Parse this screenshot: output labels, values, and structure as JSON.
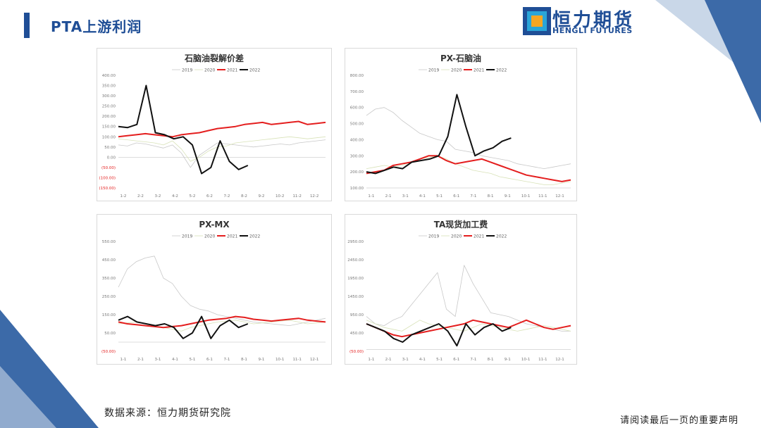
{
  "header": {
    "title": "PTA上游利润"
  },
  "logo": {
    "cn": "恒力期货",
    "en": "HENGLI FUTURES"
  },
  "footer": {
    "source": "数据来源：恒力期货研究院",
    "disclaimer": "请阅读最后一页的重要声明"
  },
  "colors": {
    "brand": "#1f4e96",
    "y2019": "#c8c8c8",
    "y2020": "#d8e2b8",
    "y2021": "#e41e1e",
    "y2022": "#111111"
  },
  "chart_data": [
    {
      "type": "line",
      "title": "石脑油裂解价差",
      "legend": [
        "2019",
        "2020",
        "2021",
        "2022"
      ],
      "legend_position": "top",
      "x_ticks": [
        "1-2",
        "2-2",
        "3-2",
        "4-2",
        "5-2",
        "6-2",
        "7-2",
        "8-2",
        "9-2",
        "10-2",
        "11-2",
        "12-2"
      ],
      "y_ticks": [
        "400.00",
        "350.00",
        "300.00",
        "250.00",
        "200.00",
        "150.00",
        "100.00",
        "50.00",
        "0.00",
        "(50.00)",
        "(100.00)",
        "(150.00)"
      ],
      "ylim": [
        -150,
        400
      ],
      "series": [
        {
          "name": "2019",
          "values": [
            60,
            55,
            70,
            65,
            55,
            45,
            60,
            20,
            -50,
            10,
            40,
            70,
            65,
            60,
            55,
            50,
            55,
            60,
            65,
            60,
            70,
            75,
            80,
            85
          ]
        },
        {
          "name": "2020",
          "values": [
            90,
            85,
            80,
            75,
            70,
            60,
            80,
            40,
            -20,
            0,
            30,
            50,
            55,
            70,
            75,
            80,
            85,
            90,
            95,
            100,
            95,
            90,
            95,
            100
          ]
        },
        {
          "name": "2021",
          "values": [
            100,
            105,
            110,
            115,
            110,
            105,
            100,
            110,
            115,
            120,
            130,
            140,
            145,
            150,
            160,
            165,
            170,
            160,
            165,
            170,
            175,
            160,
            165,
            170
          ]
        },
        {
          "name": "2022",
          "values": [
            150,
            145,
            160,
            350,
            120,
            110,
            90,
            100,
            60,
            -80,
            -50,
            80,
            -20,
            -60,
            -40
          ]
        }
      ]
    },
    {
      "type": "line",
      "title": "PX-石脑油",
      "legend": [
        "2019",
        "2020",
        "2021",
        "2022"
      ],
      "legend_position": "top",
      "x_ticks": [
        "1-1",
        "2-1",
        "3-1",
        "4-1",
        "5-1",
        "6-1",
        "7-1",
        "8-1",
        "9-1",
        "10-1",
        "11-1",
        "12-1"
      ],
      "y_ticks": [
        "800.00",
        "700.00",
        "600.00",
        "500.00",
        "400.00",
        "300.00",
        "200.00",
        "100.00"
      ],
      "ylim": [
        100,
        800
      ],
      "series": [
        {
          "name": "2019",
          "values": [
            550,
            590,
            600,
            570,
            520,
            480,
            440,
            420,
            400,
            390,
            340,
            330,
            320,
            300,
            290,
            280,
            270,
            250,
            240,
            230,
            220,
            230,
            240,
            250
          ]
        },
        {
          "name": "2020",
          "values": [
            220,
            230,
            240,
            230,
            240,
            260,
            280,
            290,
            300,
            280,
            250,
            230,
            210,
            200,
            190,
            170,
            160,
            150,
            140,
            130,
            120,
            120,
            130,
            140
          ]
        },
        {
          "name": "2021",
          "values": [
            190,
            200,
            210,
            240,
            250,
            260,
            280,
            300,
            300,
            270,
            250,
            260,
            270,
            280,
            260,
            240,
            220,
            200,
            180,
            170,
            160,
            150,
            140,
            150
          ]
        },
        {
          "name": "2022",
          "values": [
            200,
            190,
            210,
            230,
            220,
            260,
            270,
            280,
            300,
            420,
            680,
            480,
            300,
            330,
            350,
            390,
            410
          ]
        }
      ]
    },
    {
      "type": "line",
      "title": "PX-MX",
      "legend": [
        "2019",
        "2020",
        "2021",
        "2022"
      ],
      "legend_position": "top",
      "x_ticks": [
        "1-1",
        "2-1",
        "3-1",
        "4-1",
        "5-1",
        "6-1",
        "7-1",
        "8-1",
        "9-1",
        "10-1",
        "11-1",
        "12-1"
      ],
      "y_ticks": [
        "550.00",
        "450.00",
        "350.00",
        "250.00",
        "150.00",
        "50.00",
        "(50.00)"
      ],
      "ylim": [
        -50,
        550
      ],
      "series": [
        {
          "name": "2019",
          "values": [
            300,
            400,
            440,
            460,
            470,
            350,
            320,
            250,
            200,
            180,
            170,
            150,
            140,
            130,
            120,
            110,
            105,
            100,
            95,
            90,
            100,
            110,
            120,
            130
          ]
        },
        {
          "name": "2020",
          "values": [
            100,
            105,
            110,
            100,
            90,
            80,
            70,
            60,
            80,
            90,
            100,
            110,
            115,
            120,
            110,
            100,
            105,
            110,
            115,
            120,
            110,
            100,
            105,
            110
          ]
        },
        {
          "name": "2021",
          "values": [
            110,
            100,
            95,
            90,
            85,
            80,
            85,
            90,
            100,
            110,
            120,
            125,
            130,
            140,
            135,
            125,
            120,
            115,
            120,
            125,
            130,
            120,
            115,
            110
          ]
        },
        {
          "name": "2022",
          "values": [
            120,
            140,
            110,
            100,
            90,
            100,
            80,
            20,
            50,
            140,
            20,
            90,
            120,
            80,
            100
          ]
        }
      ]
    },
    {
      "type": "line",
      "title": "TA现货加工费",
      "legend": [
        "2019",
        "2020",
        "2021",
        "2022"
      ],
      "legend_position": "top",
      "x_ticks": [
        "1-1",
        "2-1",
        "3-1",
        "4-1",
        "5-1",
        "6-1",
        "7-1",
        "8-1",
        "9-1",
        "10-1",
        "11-1",
        "12-1"
      ],
      "y_ticks": [
        "2950.00",
        "2450.00",
        "1950.00",
        "1450.00",
        "950.00",
        "450.00",
        "(50.00)"
      ],
      "ylim": [
        -50,
        2950
      ],
      "series": [
        {
          "name": "2019",
          "values": [
            900,
            700,
            650,
            800,
            900,
            1200,
            1500,
            1800,
            2100,
            1100,
            900,
            2300,
            1800,
            1400,
            1000,
            950,
            900,
            800,
            700,
            650,
            600,
            550,
            500,
            500
          ]
        },
        {
          "name": "2020",
          "values": [
            800,
            700,
            600,
            550,
            500,
            650,
            800,
            700,
            650,
            600,
            550,
            500,
            600,
            700,
            650,
            600,
            550,
            500,
            550,
            600,
            650,
            600,
            550,
            500
          ]
        },
        {
          "name": "2021",
          "values": [
            700,
            600,
            500,
            400,
            350,
            400,
            450,
            500,
            550,
            600,
            650,
            700,
            800,
            750,
            700,
            650,
            600,
            700,
            800,
            700,
            600,
            550,
            600,
            650
          ]
        },
        {
          "name": "2022",
          "values": [
            700,
            600,
            500,
            300,
            200,
            400,
            500,
            600,
            700,
            500,
            100,
            700,
            400,
            600,
            700,
            500,
            600
          ]
        }
      ]
    }
  ]
}
